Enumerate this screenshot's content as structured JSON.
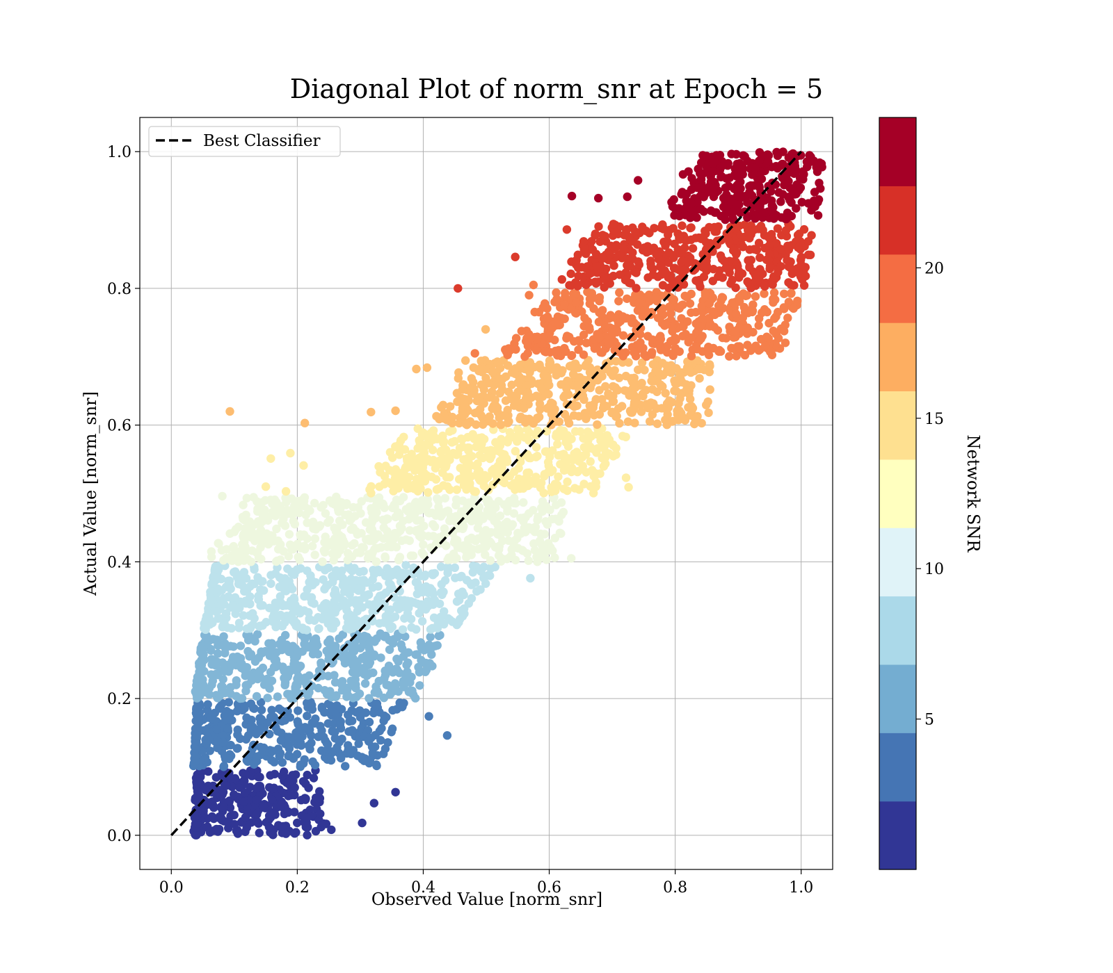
{
  "chart_data": {
    "type": "scatter",
    "title": "Diagonal Plot of norm_snr at Epoch = 5",
    "xlabel": "Observed Value [norm_snr]",
    "ylabel": "Actual Value [norm_snr]",
    "xlim": [
      -0.05,
      1.05
    ],
    "ylim": [
      -0.05,
      1.05
    ],
    "xticks": [
      "0.0",
      "0.2",
      "0.4",
      "0.6",
      "0.8",
      "1.0"
    ],
    "yticks": [
      "0.0",
      "0.2",
      "0.4",
      "0.6",
      "0.8",
      "1.0"
    ],
    "grid": true,
    "legend": {
      "placement": "top-left",
      "entries": [
        "Best Classifier"
      ]
    },
    "reference_line": {
      "name": "Best Classifier",
      "style": "dashed",
      "color": "#000000",
      "x": [
        0,
        1
      ],
      "y": [
        0,
        1
      ]
    },
    "colorbar": {
      "label": "Network SNR",
      "range": [
        0,
        25
      ],
      "ticks": [
        "5",
        "10",
        "15",
        "20"
      ],
      "colors": [
        "#313695",
        "#4575b4",
        "#74add1",
        "#abd9e9",
        "#e0f3f8",
        "#ffffbf",
        "#fee090",
        "#fdae61",
        "#f46d43",
        "#d73027",
        "#a50026"
      ]
    },
    "bands": [
      {
        "snr": 1.1,
        "y": [
          0.0,
          0.095
        ],
        "x_min": [
          0.035,
          0.04
        ],
        "x_max": [
          0.2,
          0.18
        ],
        "color": "#313695"
      },
      {
        "snr": 3.4,
        "y": [
          0.1,
          0.195
        ],
        "x_min": [
          0.035,
          0.04
        ],
        "x_max": [
          0.28,
          0.32
        ],
        "color": "#4a7db8"
      },
      {
        "snr": 5.7,
        "y": [
          0.2,
          0.295
        ],
        "x_min": [
          0.035,
          0.05
        ],
        "x_max": [
          0.35,
          0.38
        ],
        "color": "#82b6d6"
      },
      {
        "snr": 8.0,
        "y": [
          0.3,
          0.395
        ],
        "x_min": [
          0.05,
          0.07
        ],
        "x_max": [
          0.4,
          0.48
        ],
        "color": "#bde2ec"
      },
      {
        "snr": 10.2,
        "y": [
          0.4,
          0.495
        ],
        "x_min": [
          0.08,
          0.15
        ],
        "x_max": [
          0.56,
          0.58
        ],
        "color": "#eef7df"
      },
      {
        "snr": 12.5,
        "y": [
          0.5,
          0.595
        ],
        "x_min": [
          0.33,
          0.4
        ],
        "x_max": [
          0.63,
          0.68
        ],
        "color": "#feeea6"
      },
      {
        "snr": 14.8,
        "y": [
          0.6,
          0.695
        ],
        "x_min": [
          0.44,
          0.49
        ],
        "x_max": [
          0.8,
          0.82
        ],
        "color": "#fdbd71"
      },
      {
        "snr": 17.0,
        "y": [
          0.7,
          0.795
        ],
        "x_min": [
          0.55,
          0.63
        ],
        "x_max": [
          0.92,
          0.95
        ],
        "color": "#f57f4b"
      },
      {
        "snr": 19.3,
        "y": [
          0.8,
          0.895
        ],
        "x_min": [
          0.64,
          0.7
        ],
        "x_max": [
          0.96,
          0.97
        ],
        "color": "#db3b2c"
      },
      {
        "snr": 21.6,
        "y": [
          0.9,
          1.0
        ],
        "x_min": [
          0.8,
          0.86
        ],
        "x_max": [
          0.98,
          0.99
        ],
        "color": "#a50026"
      }
    ],
    "outliers": [
      [
        0.455,
        0.8,
        "#db3b2c"
      ],
      [
        0.546,
        0.846,
        "#db3b2c"
      ],
      [
        0.636,
        0.935,
        "#a50026"
      ],
      [
        0.678,
        0.932,
        "#a50026"
      ],
      [
        0.628,
        0.886,
        "#db3b2c"
      ],
      [
        0.093,
        0.62,
        "#fdbd71"
      ],
      [
        0.212,
        0.603,
        "#fdbd71"
      ],
      [
        0.317,
        0.619,
        "#fdbd71"
      ],
      [
        0.356,
        0.621,
        "#fdbd71"
      ],
      [
        0.389,
        0.682,
        "#fdbd71"
      ],
      [
        0.406,
        0.684,
        "#fdbd71"
      ],
      [
        0.853,
        0.618,
        "#fdbd71"
      ],
      [
        0.158,
        0.551,
        "#feeea6"
      ],
      [
        0.189,
        0.559,
        "#feeea6"
      ],
      [
        0.21,
        0.541,
        "#feeea6"
      ],
      [
        0.15,
        0.51,
        "#feeea6"
      ],
      [
        0.182,
        0.503,
        "#feeea6"
      ],
      [
        0.722,
        0.523,
        "#feeea6"
      ],
      [
        0.726,
        0.509,
        "#feeea6"
      ],
      [
        0.635,
        0.405,
        "#eef7df"
      ],
      [
        0.081,
        0.496,
        "#eef7df"
      ],
      [
        0.57,
        0.376,
        "#bde2ec"
      ],
      [
        0.438,
        0.146,
        "#4a7db8"
      ],
      [
        0.409,
        0.174,
        "#4a7db8"
      ],
      [
        0.356,
        0.063,
        "#313695"
      ],
      [
        0.322,
        0.047,
        "#313695"
      ],
      [
        0.303,
        0.018,
        "#313695"
      ],
      [
        0.254,
        0.008,
        "#313695"
      ],
      [
        0.943,
        0.716,
        "#f57f4b"
      ],
      [
        0.945,
        0.766,
        "#f57f4b"
      ],
      [
        0.575,
        0.805,
        "#f57f4b"
      ],
      [
        0.568,
        0.79,
        "#f57f4b"
      ],
      [
        0.741,
        0.958,
        "#a50026"
      ],
      [
        0.724,
        0.934,
        "#a50026"
      ],
      [
        0.499,
        0.74,
        "#fdbd71"
      ],
      [
        0.482,
        0.705,
        "#f57f4b"
      ]
    ]
  }
}
